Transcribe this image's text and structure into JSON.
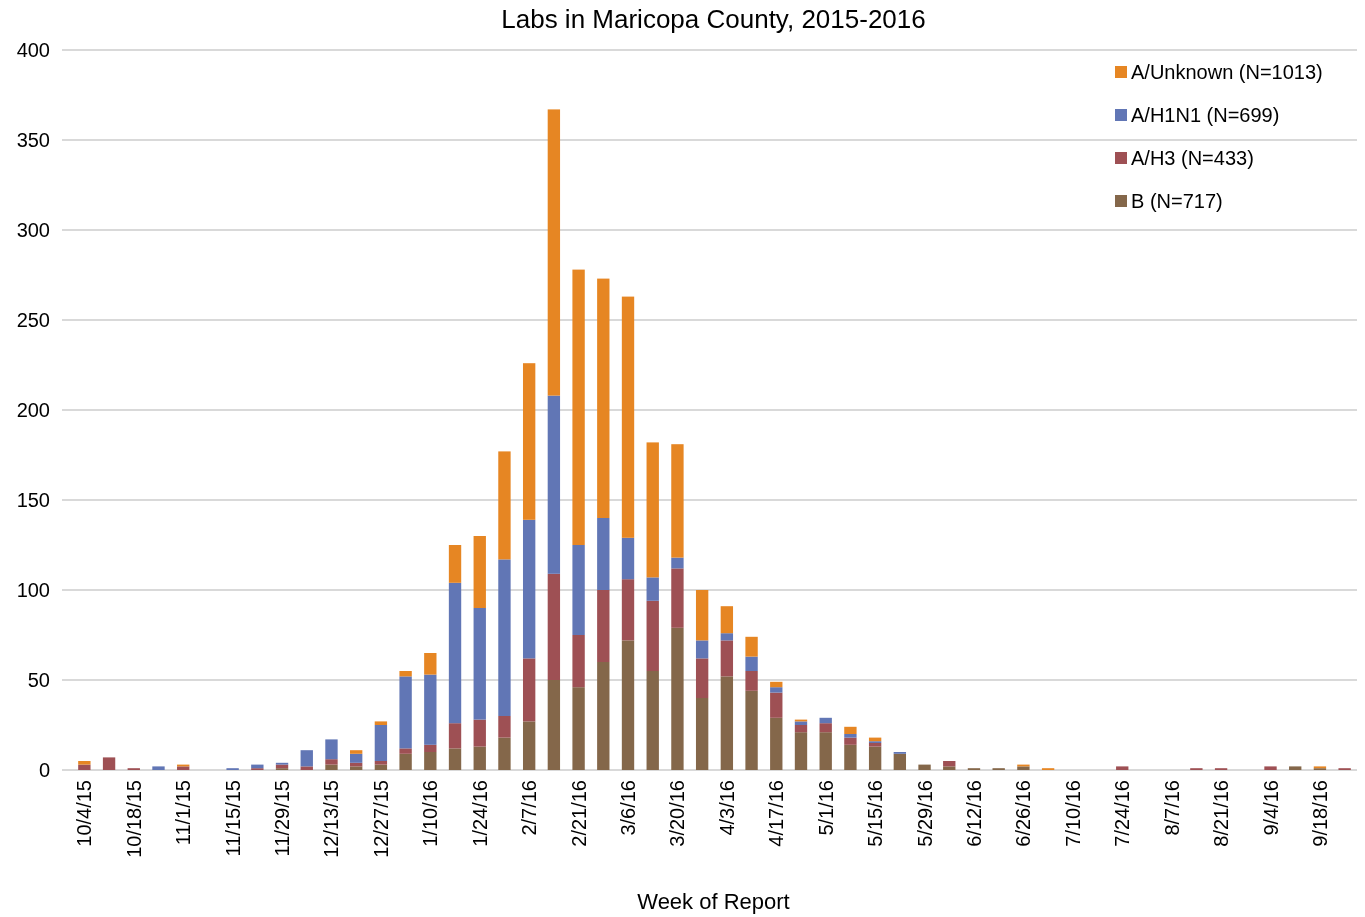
{
  "chart_data": {
    "type": "bar",
    "title": "Labs in Maricopa County, 2015-2016",
    "xlabel": "Week of Report",
    "stacked": true,
    "grid": "y",
    "legend": "top right",
    "ylim": [
      0,
      400
    ],
    "yticks": [
      0,
      50,
      100,
      150,
      200,
      250,
      300,
      350,
      400
    ],
    "categories": [
      "10/4/15",
      null,
      "10/18/15",
      null,
      "11/1/15",
      null,
      "11/15/15",
      null,
      "11/29/15",
      null,
      "12/13/15",
      null,
      "12/27/15",
      null,
      "1/10/16",
      null,
      "1/24/16",
      null,
      "2/7/16",
      null,
      "2/21/16",
      null,
      "3/6/16",
      null,
      "3/20/16",
      null,
      "4/3/16",
      null,
      "4/17/16",
      null,
      "5/1/16",
      null,
      "5/15/16",
      null,
      "5/29/16",
      null,
      "6/12/16",
      null,
      "6/26/16",
      null,
      "7/10/16",
      null,
      "7/24/16",
      null,
      "8/7/16",
      null,
      "8/21/16",
      null,
      "9/4/16",
      null,
      "9/18/16",
      null
    ],
    "series": [
      {
        "name": "B (N=717)",
        "color": "#84674a",
        "values": [
          0,
          0,
          0,
          0,
          0,
          0,
          0,
          0,
          1,
          0,
          3,
          2,
          3,
          9,
          10,
          12,
          13,
          18,
          27,
          50,
          46,
          60,
          72,
          55,
          79,
          40,
          52,
          44,
          29,
          21,
          21,
          14,
          13,
          9,
          3,
          2,
          1,
          1,
          2,
          0,
          0,
          0,
          0,
          0,
          0,
          0,
          0,
          0,
          0,
          2,
          1,
          0
        ]
      },
      {
        "name": "A/H3 (N=433)",
        "color": "#9e5054",
        "values": [
          3,
          7,
          1,
          0,
          2,
          0,
          0,
          1,
          2,
          2,
          3,
          2,
          2,
          3,
          4,
          14,
          15,
          12,
          35,
          59,
          29,
          40,
          34,
          39,
          33,
          22,
          20,
          11,
          14,
          4,
          5,
          4,
          2,
          0,
          0,
          3,
          0,
          0,
          0,
          0,
          0,
          0,
          2,
          0,
          0,
          1,
          1,
          0,
          2,
          0,
          0,
          1
        ]
      },
      {
        "name": "A/H1N1 (N=699)",
        "color": "#6176b5",
        "values": [
          0,
          0,
          0,
          2,
          0,
          0,
          1,
          2,
          1,
          9,
          11,
          5,
          20,
          40,
          39,
          78,
          62,
          87,
          77,
          99,
          50,
          40,
          23,
          13,
          6,
          10,
          4,
          8,
          3,
          2,
          3,
          2,
          1,
          1,
          0,
          0,
          0,
          0,
          0,
          0,
          0,
          0,
          0,
          0,
          0,
          0,
          0,
          0,
          0,
          0,
          0,
          0
        ]
      },
      {
        "name": "A/Unknown (N=1013)",
        "color": "#e68623",
        "values": [
          2,
          0,
          0,
          0,
          1,
          0,
          0,
          0,
          0,
          0,
          0,
          2,
          2,
          3,
          12,
          21,
          40,
          60,
          87,
          159,
          153,
          133,
          134,
          75,
          63,
          28,
          15,
          11,
          3,
          1,
          0,
          4,
          2,
          0,
          0,
          0,
          0,
          0,
          1,
          1,
          0,
          0,
          0,
          0,
          0,
          0,
          0,
          0,
          0,
          0,
          1,
          0
        ]
      }
    ]
  }
}
